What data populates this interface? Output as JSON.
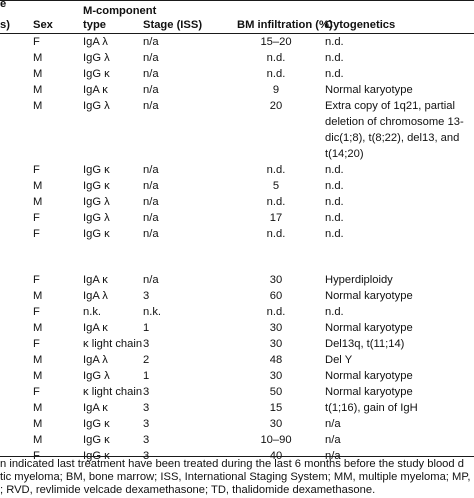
{
  "header": {
    "col0_fragment_top": "e",
    "col0_fragment_bottom": "s)",
    "sex": "Sex",
    "mcomp_line1": "M-component",
    "mcomp_line2": "type",
    "stage": "Stage (ISS)",
    "bm": "BM infiltration (%)",
    "cyto": "Cytogenetics"
  },
  "rows": [
    {
      "sex": "F",
      "type": "IgA λ",
      "stage": "n/a",
      "bm": "15–20",
      "cyto": "n.d."
    },
    {
      "sex": "M",
      "type": "IgG λ",
      "stage": "n/a",
      "bm": "n.d.",
      "cyto": "n.d."
    },
    {
      "sex": "M",
      "type": "IgG κ",
      "stage": "n/a",
      "bm": "n.d.",
      "cyto": "n.d."
    },
    {
      "sex": "M",
      "type": "IgA κ",
      "stage": "n/a",
      "bm": "9",
      "cyto": "Normal karyotype"
    },
    {
      "sex": "M",
      "type": "IgG λ",
      "stage": "n/a",
      "bm": "20",
      "cyto": "Extra copy of 1q21, partial\ndeletion of chromosome 13-\ndic(1;8), t(8;22), del13, and\nt(14;20)"
    },
    {
      "sex": "F",
      "type": "IgG κ",
      "stage": "n/a",
      "bm": "n.d.",
      "cyto": "n.d."
    },
    {
      "sex": "M",
      "type": "IgG κ",
      "stage": "n/a",
      "bm": "5",
      "cyto": "n.d."
    },
    {
      "sex": "M",
      "type": "IgG λ",
      "stage": "n/a",
      "bm": "n.d.",
      "cyto": "n.d."
    },
    {
      "sex": "F",
      "type": "IgG λ",
      "stage": "n/a",
      "bm": "17",
      "cyto": "n.d."
    },
    {
      "sex": "F",
      "type": "IgG κ",
      "stage": "n/a",
      "bm": "n.d.",
      "cyto": "n.d."
    },
    {
      "sex": "F",
      "type": "IgA κ",
      "stage": "n/a",
      "bm": "30",
      "cyto": "Hyperdiploidy"
    },
    {
      "sex": "M",
      "type": "IgA λ",
      "stage": "3",
      "bm": "60",
      "cyto": "Normal karyotype"
    },
    {
      "sex": "F",
      "type": "n.k.",
      "stage": "n.k.",
      "bm": "n.d.",
      "cyto": "n.d."
    },
    {
      "sex": "M",
      "type": "IgA κ",
      "stage": "1",
      "bm": "30",
      "cyto": "Normal karyotype"
    },
    {
      "sex": "F",
      "type": "κ light chain",
      "stage": "3",
      "bm": "30",
      "cyto": "Del13q, t(11;14)"
    },
    {
      "sex": "M",
      "type": "IgA λ",
      "stage": "2",
      "bm": "48",
      "cyto": "Del Y"
    },
    {
      "sex": "M",
      "type": "IgG λ",
      "stage": "1",
      "bm": "30",
      "cyto": "Normal karyotype"
    },
    {
      "sex": "F",
      "type": "κ light chain",
      "stage": "3",
      "bm": "50",
      "cyto": "Normal karyotype"
    },
    {
      "sex": "M",
      "type": "IgA κ",
      "stage": "3",
      "bm": "15",
      "cyto": "t(1;16), gain of IgH"
    },
    {
      "sex": "M",
      "type": "IgG κ",
      "stage": "3",
      "bm": "30",
      "cyto": "n/a"
    },
    {
      "sex": "M",
      "type": "IgG κ",
      "stage": "3",
      "bm": "10–90",
      "cyto": "n/a"
    },
    {
      "sex": "F",
      "type": "IgG κ",
      "stage": "3",
      "bm": "40",
      "cyto": "n/a"
    }
  ],
  "footnotes": [
    "n indicated last treatment have been treated during the last 6 months before the study blood d",
    "tic myeloma; BM, bone marrow; ISS, International Staging System; MM, multiple myeloma; MP,",
    "; RVD, revlimide velcade dexamethasone; TD, thalidomide dexamethasone."
  ]
}
